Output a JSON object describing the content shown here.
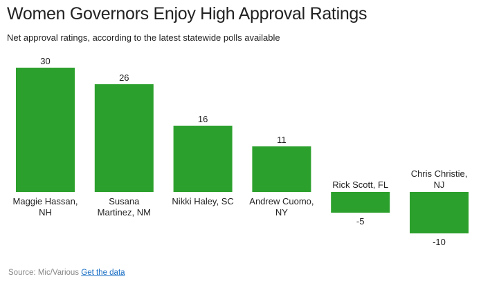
{
  "title": "Women Governors Enjoy High Approval Ratings",
  "subtitle": "Net approval ratings, according to the latest statewide polls available",
  "source": {
    "text": "Source: Mic/Various",
    "link_label": "Get the data"
  },
  "colors": {
    "bar": "#2ca02c",
    "text": "#222222",
    "link": "#1a6fc4"
  },
  "chart_data": {
    "type": "bar",
    "title": "Women Governors Enjoy High Approval Ratings",
    "subtitle": "Net approval ratings, according to the latest statewide polls available",
    "categories": [
      [
        "Maggie Hassan,",
        "NH"
      ],
      [
        "Susana",
        "Martinez, NM"
      ],
      [
        "Nikki Haley, SC"
      ],
      [
        "Andrew Cuomo,",
        "NY"
      ],
      [
        "Rick Scott, FL"
      ],
      [
        "Chris Christie,",
        "NJ"
      ]
    ],
    "values": [
      30,
      26,
      16,
      11,
      -5,
      -10
    ],
    "xlabel": "",
    "ylabel": "",
    "ylim": [
      -10,
      30
    ],
    "grid": false,
    "legend": "none"
  }
}
